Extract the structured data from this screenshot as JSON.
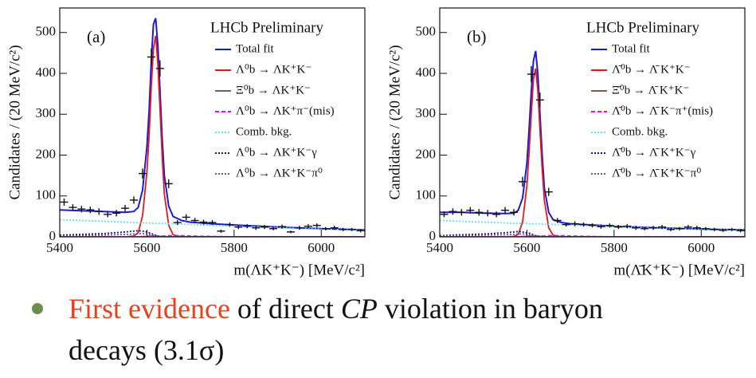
{
  "chart_data": [
    {
      "type": "line",
      "panel": "(a)",
      "watermark": "LHCb Preliminary",
      "xlabel": "m(ΛK⁺K⁻) [MeV/c²]",
      "ylabel": "Candidates / (20 MeV/c²)",
      "xlim": [
        5400,
        6100
      ],
      "ylim": [
        0,
        560
      ],
      "xticks": [
        5400,
        5600,
        5800,
        6000
      ],
      "yticks": [
        0,
        100,
        200,
        300,
        400,
        500
      ],
      "x": [
        5400,
        5450,
        5500,
        5550,
        5570,
        5580,
        5590,
        5600,
        5605,
        5610,
        5615,
        5620,
        5625,
        5630,
        5635,
        5640,
        5650,
        5660,
        5680,
        5700,
        5750,
        5800,
        5900,
        6000,
        6100
      ],
      "series": [
        {
          "name": "Total fit",
          "color": "#1a1adb",
          "style": "solid",
          "values": [
            66,
            64,
            62,
            60,
            62,
            72,
            115,
            220,
            310,
            430,
            520,
            535,
            470,
            360,
            240,
            150,
            75,
            50,
            40,
            36,
            32,
            29,
            24,
            20,
            17
          ]
        },
        {
          "name": "Λ⁰b → ΛK⁺K⁻",
          "color": "#e31a1c",
          "style": "solid",
          "values": [
            0,
            0,
            0,
            0,
            2,
            10,
            52,
            158,
            248,
            368,
            460,
            492,
            425,
            315,
            195,
            105,
            28,
            5,
            0,
            0,
            0,
            0,
            0,
            0,
            0
          ]
        },
        {
          "name": "Ξ⁰b → ΛK⁺K⁻",
          "color": "#8b5a4a",
          "style": "solid",
          "values": [
            0,
            0,
            0,
            0,
            0,
            0,
            1,
            1,
            2,
            2,
            2,
            2,
            2,
            1,
            1,
            1,
            0,
            0,
            0,
            0,
            0,
            0,
            0,
            0,
            0
          ]
        },
        {
          "name": "Λ⁰b → ΛK⁺π⁻(mis)",
          "color": "#ff00ff",
          "style": "dashed",
          "values": [
            0,
            0,
            0,
            0,
            0,
            0,
            0,
            1,
            1,
            2,
            2,
            2,
            2,
            2,
            2,
            2,
            3,
            3,
            3,
            2,
            1,
            0,
            0,
            0,
            0
          ]
        },
        {
          "name": "Comb. bkg.",
          "color": "#66e0ff",
          "style": "dotted",
          "values": [
            42,
            40,
            38,
            36,
            35,
            35,
            34,
            34,
            34,
            34,
            33,
            33,
            33,
            33,
            33,
            33,
            32,
            32,
            31,
            30,
            28,
            26,
            22,
            19,
            16
          ]
        },
        {
          "name": "Λ⁰b → ΛK⁺K⁻γ",
          "color": "#1010aa",
          "style": "dotted",
          "values": [
            4,
            6,
            8,
            12,
            14,
            15,
            14,
            12,
            10,
            8,
            6,
            4,
            2,
            1,
            0,
            0,
            0,
            0,
            0,
            0,
            0,
            0,
            0,
            0,
            0
          ]
        },
        {
          "name": "Λ⁰b → ΛK⁺K⁻π⁰",
          "color": "#5a5a9a",
          "style": "dotted",
          "values": [
            2,
            3,
            4,
            6,
            7,
            8,
            8,
            7,
            6,
            5,
            4,
            3,
            2,
            1,
            1,
            0,
            0,
            0,
            0,
            0,
            0,
            0,
            0,
            0,
            0
          ]
        }
      ],
      "points": {
        "x": [
          5410,
          5430,
          5450,
          5470,
          5490,
          5510,
          5530,
          5550,
          5570,
          5590,
          5610,
          5630,
          5650,
          5670,
          5690,
          5710,
          5730,
          5750,
          5770,
          5790,
          5810,
          5830,
          5850,
          5870,
          5890,
          5910,
          5930,
          5950,
          5970,
          5990,
          6010,
          6030,
          6050,
          6070,
          6090
        ],
        "values": [
          85,
          72,
          68,
          66,
          62,
          55,
          58,
          70,
          90,
          155,
          440,
          412,
          130,
          35,
          48,
          40,
          36,
          35,
          14,
          30,
          24,
          26,
          22,
          24,
          20,
          25,
          12,
          22,
          26,
          28,
          20,
          22,
          18,
          18,
          15
        ],
        "errors": [
          9,
          8,
          8,
          8,
          8,
          7,
          8,
          8,
          9,
          12,
          21,
          20,
          11,
          6,
          7,
          6,
          6,
          6,
          4,
          5,
          5,
          5,
          5,
          5,
          4,
          5,
          3,
          5,
          5,
          5,
          4,
          5,
          4,
          4,
          4
        ]
      }
    },
    {
      "type": "line",
      "panel": "(b)",
      "watermark": "LHCb Preliminary",
      "xlabel": "m(Λ̄K⁺K⁻) [MeV/c²]",
      "ylabel": "Candidates / (20 MeV/c²)",
      "xlim": [
        5400,
        6100
      ],
      "ylim": [
        0,
        560
      ],
      "xticks": [
        5400,
        5600,
        5800,
        6000
      ],
      "yticks": [
        0,
        100,
        200,
        300,
        400,
        500
      ],
      "x": [
        5400,
        5450,
        5500,
        5550,
        5570,
        5580,
        5590,
        5600,
        5605,
        5610,
        5615,
        5620,
        5625,
        5630,
        5635,
        5640,
        5650,
        5660,
        5680,
        5700,
        5750,
        5800,
        5900,
        6000,
        6100
      ],
      "series": [
        {
          "name": "Total fit",
          "color": "#1a1adb",
          "style": "solid",
          "values": [
            60,
            60,
            58,
            57,
            58,
            65,
            95,
            180,
            265,
            355,
            430,
            455,
            400,
            300,
            200,
            120,
            60,
            42,
            35,
            32,
            29,
            26,
            22,
            19,
            17
          ]
        },
        {
          "name": "Λ̄⁰b → Λ̄ K⁺K⁻",
          "color": "#e31a1c",
          "style": "solid",
          "values": [
            0,
            0,
            0,
            0,
            1,
            6,
            36,
            125,
            208,
            300,
            385,
            412,
            358,
            262,
            165,
            90,
            22,
            4,
            0,
            0,
            0,
            0,
            0,
            0,
            0
          ]
        },
        {
          "name": "Ξ̄⁰b → Λ̄ K⁺K⁻",
          "color": "#8b5a4a",
          "style": "solid",
          "values": [
            0,
            0,
            0,
            0,
            0,
            0,
            1,
            1,
            2,
            2,
            2,
            2,
            2,
            1,
            1,
            1,
            0,
            0,
            0,
            0,
            0,
            0,
            0,
            0,
            0
          ]
        },
        {
          "name": "Λ̄⁰b → Λ̄ K⁻π⁺(mis)",
          "color": "#ff00ff",
          "style": "dashed",
          "values": [
            0,
            0,
            0,
            0,
            0,
            0,
            0,
            1,
            1,
            2,
            2,
            2,
            2,
            2,
            2,
            2,
            3,
            3,
            3,
            2,
            1,
            0,
            0,
            0,
            0
          ]
        },
        {
          "name": "Comb. bkg.",
          "color": "#66e0ff",
          "style": "dotted",
          "values": [
            40,
            38,
            36,
            34,
            33,
            33,
            33,
            33,
            32,
            32,
            32,
            32,
            32,
            32,
            31,
            31,
            31,
            30,
            30,
            29,
            27,
            25,
            21,
            18,
            16
          ]
        },
        {
          "name": "Λ̄⁰b → Λ̄ K⁺K⁻γ",
          "color": "#1010aa",
          "style": "dotted",
          "values": [
            3,
            5,
            7,
            10,
            12,
            13,
            12,
            10,
            9,
            7,
            5,
            3,
            2,
            1,
            0,
            0,
            0,
            0,
            0,
            0,
            0,
            0,
            0,
            0,
            0
          ]
        },
        {
          "name": "Λ̄⁰b → Λ̄ K⁺K⁻π⁰",
          "color": "#5a5a9a",
          "style": "dotted",
          "values": [
            2,
            3,
            4,
            5,
            6,
            7,
            7,
            6,
            5,
            4,
            3,
            2,
            2,
            1,
            1,
            0,
            0,
            0,
            0,
            0,
            0,
            0,
            0,
            0,
            0
          ]
        }
      ],
      "points": {
        "x": [
          5410,
          5430,
          5450,
          5470,
          5490,
          5510,
          5530,
          5550,
          5570,
          5590,
          5610,
          5630,
          5650,
          5670,
          5690,
          5710,
          5730,
          5750,
          5770,
          5790,
          5810,
          5830,
          5850,
          5870,
          5890,
          5910,
          5930,
          5950,
          5970,
          5990,
          6010,
          6030,
          6050,
          6070,
          6090
        ],
        "values": [
          55,
          62,
          60,
          65,
          60,
          58,
          55,
          65,
          60,
          135,
          398,
          335,
          110,
          40,
          30,
          32,
          30,
          28,
          25,
          28,
          24,
          26,
          22,
          20,
          22,
          24,
          18,
          20,
          24,
          22,
          20,
          18,
          16,
          18,
          15
        ],
        "errors": [
          7,
          8,
          8,
          8,
          8,
          8,
          7,
          8,
          8,
          12,
          20,
          18,
          10,
          6,
          5,
          6,
          5,
          5,
          5,
          5,
          5,
          5,
          5,
          4,
          5,
          5,
          4,
          4,
          5,
          5,
          4,
          4,
          4,
          4,
          4
        ]
      }
    }
  ],
  "bullet": {
    "highlight": "First evidence",
    "text1": "of direct",
    "cp": "CP",
    "text2": "violation in baryon",
    "line2": "decays (3.1σ)"
  }
}
